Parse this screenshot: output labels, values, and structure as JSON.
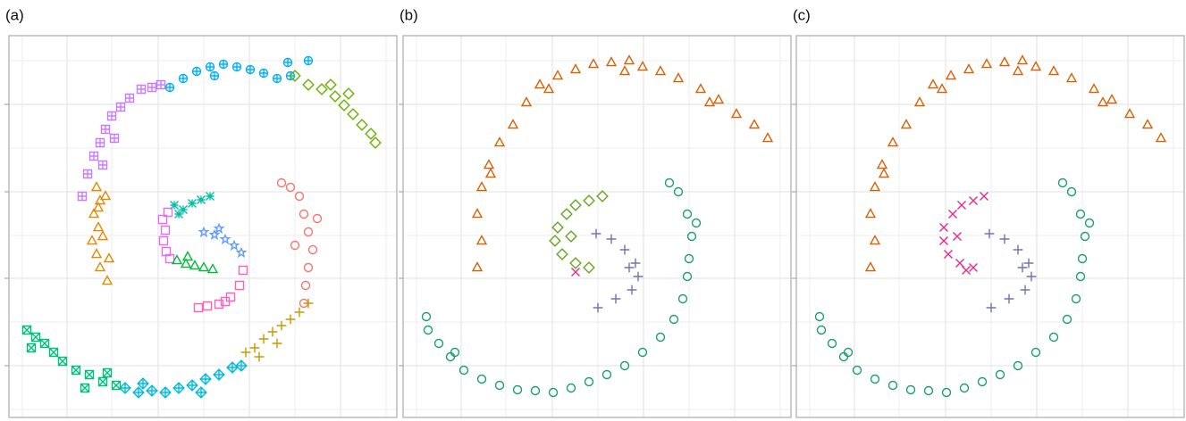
{
  "chart_data": [
    {
      "type": "scatter",
      "title": "(a)",
      "xlim": [
        0,
        434
      ],
      "ylim": [
        0,
        428
      ],
      "xticks": [
        15,
        65,
        115,
        167,
        218,
        269,
        320,
        371,
        422
      ],
      "yticks": [
        9,
        58,
        107,
        156,
        204,
        253,
        302,
        351,
        400
      ],
      "grid": true,
      "series": [
        {
          "color": "#e58700",
          "marker": "triangle",
          "x": [
            98,
            102,
            95,
            100,
            93,
            98,
            102,
            110,
            112,
            105,
            100,
            108
          ],
          "y": [
            258,
            243,
            228,
            213,
            198,
            183,
            168,
            153,
            178,
            203,
            235,
            248
          ]
        },
        {
          "color": "#c77cff",
          "marker": "square-plus",
          "x": [
            82,
            88,
            95,
            102,
            108,
            115,
            125,
            135,
            148,
            160,
            170,
            118,
            105
          ],
          "y": [
            248,
            273,
            293,
            308,
            323,
            338,
            348,
            358,
            368,
            370,
            373,
            313,
            283
          ]
        },
        {
          "color": "#00b0f6",
          "marker": "circle-plus",
          "x": [
            180,
            195,
            210,
            225,
            240,
            255,
            270,
            285,
            300,
            315,
            335,
            312,
            230
          ],
          "y": [
            370,
            380,
            388,
            393,
            396,
            393,
            390,
            386,
            380,
            383,
            400,
            398,
            383
          ]
        },
        {
          "color": "#6bb100",
          "marker": "diamond",
          "x": [
            320,
            335,
            350,
            365,
            375,
            385,
            395,
            405,
            410,
            380,
            360
          ],
          "y": [
            383,
            373,
            368,
            360,
            350,
            340,
            328,
            318,
            308,
            363,
            373
          ]
        },
        {
          "color": "#f8766d",
          "marker": "circle",
          "x": [
            305,
            315,
            325,
            330,
            335,
            340,
            335,
            332,
            330,
            345,
            320
          ],
          "y": [
            263,
            258,
            248,
            228,
            208,
            188,
            168,
            148,
            128,
            223,
            193
          ]
        },
        {
          "color": "#c49a00",
          "marker": "plus",
          "x": [
            265,
            275,
            285,
            295,
            305,
            315,
            325,
            335,
            280,
            300
          ],
          "y": [
            73,
            78,
            88,
            96,
            103,
            110,
            118,
            128,
            68,
            83
          ]
        },
        {
          "color": "#00bbdb",
          "marker": "diamond-plus",
          "x": [
            130,
            145,
            160,
            175,
            190,
            205,
            220,
            235,
            250,
            260,
            150,
            215
          ],
          "y": [
            33,
            28,
            30,
            28,
            33,
            36,
            43,
            48,
            56,
            58,
            38,
            28
          ]
        },
        {
          "color": "#00bf7d",
          "marker": "square-x",
          "x": [
            20,
            30,
            40,
            50,
            60,
            75,
            90,
            105,
            120,
            25,
            85,
            110
          ],
          "y": [
            98,
            90,
            83,
            73,
            63,
            53,
            48,
            40,
            36,
            78,
            33,
            50
          ]
        },
        {
          "color": "#00c1a3",
          "marker": "asterisk",
          "x": [
            185,
            195,
            205,
            215,
            225,
            190
          ],
          "y": [
            238,
            233,
            240,
            244,
            248,
            228
          ]
        },
        {
          "color": "#e76bf3",
          "marker": "square",
          "x": [
            172,
            175,
            173,
            176,
            180,
            178
          ],
          "y": [
            222,
            210,
            198,
            186,
            178,
            230
          ]
        },
        {
          "color": "#00ba38",
          "marker": "triangle",
          "x": [
            188,
            198,
            208,
            218,
            228,
            200
          ],
          "y": [
            176,
            172,
            170,
            168,
            166,
            180
          ]
        },
        {
          "color": "#619cff",
          "marker": "star",
          "x": [
            218,
            230,
            242,
            252,
            260,
            235
          ],
          "y": [
            208,
            205,
            200,
            193,
            185,
            212
          ]
        },
        {
          "color": "#ff62bc",
          "marker": "square",
          "x": [
            212,
            222,
            235,
            248,
            258,
            262,
            242
          ],
          "y": [
            123,
            125,
            127,
            135,
            148,
            165,
            130
          ]
        }
      ]
    },
    {
      "type": "scatter",
      "title": "(b)",
      "xlim": [
        0,
        434
      ],
      "ylim": [
        0,
        428
      ],
      "xticks": [
        15,
        65,
        115,
        167,
        218,
        269,
        320,
        371,
        422
      ],
      "yticks": [
        9,
        58,
        107,
        156,
        204,
        253,
        302,
        351,
        400
      ],
      "grid": true,
      "series": [
        {
          "color": "#d95f02",
          "marker": "triangle",
          "x": [
            83,
            88,
            83,
            88,
            96,
            108,
            123,
            138,
            153,
            173,
            193,
            213,
            233,
            253,
            268,
            288,
            308,
            333,
            353,
            373,
            393,
            408,
            98,
            163,
            248,
            343
          ],
          "y": [
            168,
            198,
            228,
            258,
            283,
            308,
            328,
            353,
            373,
            383,
            390,
            396,
            398,
            400,
            393,
            388,
            380,
            368,
            356,
            340,
            328,
            313,
            273,
            368,
            388,
            353
          ]
        },
        {
          "color": "#66a61e",
          "marker": "diamond",
          "x": [
            173,
            183,
            193,
            208,
            223,
            170,
            178,
            193,
            208,
            188
          ],
          "y": [
            213,
            228,
            238,
            243,
            248,
            198,
            183,
            173,
            168,
            203
          ]
        },
        {
          "color": "#e7298a",
          "marker": "x",
          "x": [
            193
          ],
          "y": [
            163
          ]
        },
        {
          "color": "#7570b3",
          "marker": "plus",
          "x": [
            216,
            233,
            248,
            260,
            263,
            256,
            238,
            218,
            253
          ],
          "y": [
            206,
            200,
            188,
            173,
            158,
            143,
            133,
            123,
            168
          ]
        },
        {
          "color": "#1b9e77",
          "marker": "circle",
          "x": [
            26,
            28,
            40,
            53,
            68,
            88,
            108,
            128,
            148,
            168,
            188,
            208,
            228,
            248,
            268,
            288,
            303,
            313,
            318,
            320,
            323,
            318,
            308,
            298,
            328,
            58
          ],
          "y": [
            113,
            98,
            83,
            68,
            53,
            43,
            36,
            31,
            30,
            28,
            33,
            40,
            48,
            58,
            73,
            90,
            110,
            133,
            158,
            178,
            203,
            228,
            253,
            263,
            218,
            73
          ]
        }
      ]
    },
    {
      "type": "scatter",
      "title": "(c)",
      "xlim": [
        0,
        434
      ],
      "ylim": [
        0,
        428
      ],
      "xticks": [
        15,
        65,
        115,
        167,
        218,
        269,
        320,
        371,
        422
      ],
      "yticks": [
        9,
        58,
        107,
        156,
        204,
        253,
        302,
        351,
        400
      ],
      "grid": true,
      "series": [
        {
          "color": "#d95f02",
          "marker": "triangle",
          "x": [
            83,
            88,
            83,
            88,
            96,
            108,
            123,
            138,
            153,
            173,
            193,
            213,
            233,
            253,
            268,
            288,
            308,
            333,
            353,
            373,
            393,
            408,
            98,
            163,
            248,
            343
          ],
          "y": [
            168,
            198,
            228,
            258,
            283,
            308,
            328,
            353,
            373,
            383,
            390,
            396,
            398,
            400,
            393,
            388,
            380,
            368,
            356,
            340,
            328,
            313,
            273,
            368,
            388,
            353
          ]
        },
        {
          "color": "#e7298a",
          "marker": "x",
          "x": [
            165,
            175,
            185,
            198,
            210,
            165,
            170,
            183,
            198,
            180,
            190
          ],
          "y": [
            213,
            228,
            238,
            243,
            248,
            198,
            183,
            173,
            168,
            203,
            165
          ]
        },
        {
          "color": "#7570b3",
          "marker": "plus",
          "x": [
            216,
            233,
            248,
            260,
            263,
            256,
            238,
            218,
            253
          ],
          "y": [
            206,
            200,
            188,
            173,
            158,
            143,
            133,
            123,
            168
          ]
        },
        {
          "color": "#1b9e77",
          "marker": "circle",
          "x": [
            26,
            28,
            40,
            53,
            68,
            88,
            108,
            128,
            148,
            168,
            188,
            208,
            228,
            248,
            268,
            288,
            303,
            313,
            318,
            320,
            323,
            318,
            308,
            298,
            328,
            58
          ],
          "y": [
            113,
            98,
            83,
            68,
            53,
            43,
            36,
            31,
            30,
            28,
            33,
            40,
            48,
            58,
            73,
            90,
            110,
            133,
            158,
            178,
            203,
            228,
            253,
            263,
            218,
            73
          ]
        }
      ]
    }
  ]
}
